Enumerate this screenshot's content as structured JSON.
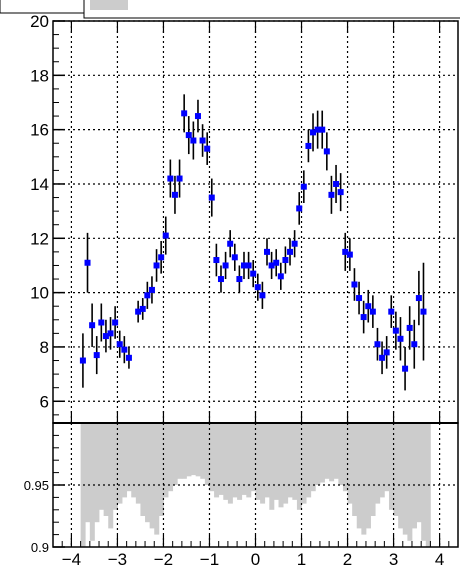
{
  "chart_data": [
    {
      "type": "scatter",
      "panel": "upper",
      "xlim": [
        -4.4,
        4.4
      ],
      "ylim": [
        5.2,
        20
      ],
      "grid": true,
      "y_ticks": [
        6,
        8,
        10,
        12,
        14,
        16,
        18,
        20
      ],
      "y_tick_labels": [
        "6",
        "8",
        "10",
        "12",
        "14",
        "16",
        "18",
        "20"
      ],
      "marker_color": "#0000ff",
      "errorbar_color": "#000000",
      "points": [
        {
          "x": -3.75,
          "y": 7.5,
          "err": 1.0
        },
        {
          "x": -3.65,
          "y": 11.1,
          "err": 1.1
        },
        {
          "x": -3.55,
          "y": 8.8,
          "err": 0.8
        },
        {
          "x": -3.45,
          "y": 7.7,
          "err": 0.7
        },
        {
          "x": -3.35,
          "y": 8.9,
          "err": 0.7
        },
        {
          "x": -3.25,
          "y": 8.4,
          "err": 0.6
        },
        {
          "x": -3.15,
          "y": 8.5,
          "err": 0.6
        },
        {
          "x": -3.05,
          "y": 8.9,
          "err": 0.6
        },
        {
          "x": -2.95,
          "y": 8.1,
          "err": 0.5
        },
        {
          "x": -2.85,
          "y": 7.9,
          "err": 0.5
        },
        {
          "x": -2.75,
          "y": 7.6,
          "err": 0.4
        },
        {
          "x": -2.55,
          "y": 9.3,
          "err": 0.4
        },
        {
          "x": -2.45,
          "y": 9.4,
          "err": 0.4
        },
        {
          "x": -2.35,
          "y": 9.9,
          "err": 0.5
        },
        {
          "x": -2.25,
          "y": 10.1,
          "err": 0.5
        },
        {
          "x": -2.15,
          "y": 11.0,
          "err": 0.6
        },
        {
          "x": -2.05,
          "y": 11.3,
          "err": 0.6
        },
        {
          "x": -1.95,
          "y": 12.1,
          "err": 0.7
        },
        {
          "x": -1.85,
          "y": 14.2,
          "err": 0.7
        },
        {
          "x": -1.75,
          "y": 13.6,
          "err": 0.7
        },
        {
          "x": -1.65,
          "y": 14.2,
          "err": 0.7
        },
        {
          "x": -1.55,
          "y": 16.6,
          "err": 0.7
        },
        {
          "x": -1.45,
          "y": 15.8,
          "err": 0.7
        },
        {
          "x": -1.35,
          "y": 15.6,
          "err": 0.7
        },
        {
          "x": -1.25,
          "y": 16.5,
          "err": 0.6
        },
        {
          "x": -1.15,
          "y": 15.6,
          "err": 0.6
        },
        {
          "x": -1.05,
          "y": 15.3,
          "err": 0.6
        },
        {
          "x": -0.95,
          "y": 13.5,
          "err": 0.7
        },
        {
          "x": -0.85,
          "y": 11.2,
          "err": 0.6
        },
        {
          "x": -0.75,
          "y": 10.5,
          "err": 0.5
        },
        {
          "x": -0.65,
          "y": 11.0,
          "err": 0.5
        },
        {
          "x": -0.55,
          "y": 11.8,
          "err": 0.5
        },
        {
          "x": -0.45,
          "y": 11.3,
          "err": 0.5
        },
        {
          "x": -0.35,
          "y": 10.5,
          "err": 0.5
        },
        {
          "x": -0.25,
          "y": 11.0,
          "err": 0.5
        },
        {
          "x": -0.15,
          "y": 11.0,
          "err": 0.5
        },
        {
          "x": -0.05,
          "y": 10.7,
          "err": 0.5
        },
        {
          "x": 0.05,
          "y": 10.2,
          "err": 0.5
        },
        {
          "x": 0.15,
          "y": 9.9,
          "err": 0.5
        },
        {
          "x": 0.25,
          "y": 11.5,
          "err": 0.5
        },
        {
          "x": 0.35,
          "y": 11.0,
          "err": 0.5
        },
        {
          "x": 0.45,
          "y": 11.1,
          "err": 0.5
        },
        {
          "x": 0.55,
          "y": 10.6,
          "err": 0.5
        },
        {
          "x": 0.65,
          "y": 11.2,
          "err": 0.5
        },
        {
          "x": 0.75,
          "y": 11.5,
          "err": 0.5
        },
        {
          "x": 0.85,
          "y": 11.8,
          "err": 0.5
        },
        {
          "x": 0.95,
          "y": 13.1,
          "err": 0.6
        },
        {
          "x": 1.05,
          "y": 13.9,
          "err": 0.6
        },
        {
          "x": 1.15,
          "y": 15.4,
          "err": 0.6
        },
        {
          "x": 1.25,
          "y": 15.9,
          "err": 0.7
        },
        {
          "x": 1.35,
          "y": 16.0,
          "err": 0.7
        },
        {
          "x": 1.45,
          "y": 16.0,
          "err": 0.7
        },
        {
          "x": 1.55,
          "y": 15.2,
          "err": 0.7
        },
        {
          "x": 1.65,
          "y": 13.6,
          "err": 0.7
        },
        {
          "x": 1.75,
          "y": 14.0,
          "err": 0.7
        },
        {
          "x": 1.85,
          "y": 13.7,
          "err": 0.7
        },
        {
          "x": 1.95,
          "y": 11.5,
          "err": 0.7
        },
        {
          "x": 2.05,
          "y": 11.4,
          "err": 0.6
        },
        {
          "x": 2.15,
          "y": 10.3,
          "err": 0.6
        },
        {
          "x": 2.25,
          "y": 9.8,
          "err": 0.6
        },
        {
          "x": 2.35,
          "y": 9.1,
          "err": 0.6
        },
        {
          "x": 2.45,
          "y": 9.5,
          "err": 0.6
        },
        {
          "x": 2.55,
          "y": 9.3,
          "err": 0.6
        },
        {
          "x": 2.65,
          "y": 8.1,
          "err": 0.6
        },
        {
          "x": 2.75,
          "y": 7.6,
          "err": 0.6
        },
        {
          "x": 2.85,
          "y": 7.8,
          "err": 0.6
        },
        {
          "x": 2.95,
          "y": 9.3,
          "err": 0.6
        },
        {
          "x": 3.05,
          "y": 8.6,
          "err": 0.7
        },
        {
          "x": 3.15,
          "y": 8.3,
          "err": 0.8
        },
        {
          "x": 3.25,
          "y": 7.2,
          "err": 0.8
        },
        {
          "x": 3.35,
          "y": 8.7,
          "err": 0.8
        },
        {
          "x": 3.45,
          "y": 8.1,
          "err": 0.9
        },
        {
          "x": 3.55,
          "y": 9.8,
          "err": 1.0
        },
        {
          "x": 3.65,
          "y": 9.3,
          "err": 1.8
        }
      ]
    },
    {
      "type": "bar",
      "panel": "lower",
      "xlim": [
        -4.4,
        4.4
      ],
      "ylim": [
        0.9,
        1.0
      ],
      "grid": true,
      "fill_color": "#cccccc",
      "y_ticks": [
        0.9,
        0.95
      ],
      "y_tick_labels": [
        "0.9",
        "0.95"
      ],
      "x_ticks": [
        -4,
        -3,
        -2,
        -1,
        0,
        1,
        2,
        3,
        4
      ],
      "x_tick_labels": [
        "−4",
        "−3",
        "−2",
        "−1",
        "0",
        "1",
        "2",
        "3",
        "4"
      ],
      "bin_start": -3.8,
      "bin_width": 0.1,
      "values": [
        0.9,
        0.92,
        0.905,
        0.92,
        0.93,
        0.925,
        0.915,
        0.93,
        0.935,
        0.94,
        0.945,
        0.94,
        0.935,
        0.925,
        0.92,
        0.915,
        0.91,
        0.925,
        0.94,
        0.945,
        0.95,
        0.955,
        0.955,
        0.957,
        0.958,
        0.957,
        0.955,
        0.95,
        0.945,
        0.94,
        0.942,
        0.938,
        0.935,
        0.94,
        0.938,
        0.942,
        0.94,
        0.945,
        0.938,
        0.935,
        0.94,
        0.93,
        0.938,
        0.932,
        0.935,
        0.94,
        0.938,
        0.93,
        0.935,
        0.94,
        0.945,
        0.95,
        0.952,
        0.955,
        0.953,
        0.955,
        0.95,
        0.945,
        0.935,
        0.925,
        0.915,
        0.91,
        0.915,
        0.925,
        0.935,
        0.94,
        0.945,
        0.93,
        0.925,
        0.915,
        0.91,
        0.905,
        0.915,
        0.92,
        0.905,
        0.9
      ]
    }
  ]
}
